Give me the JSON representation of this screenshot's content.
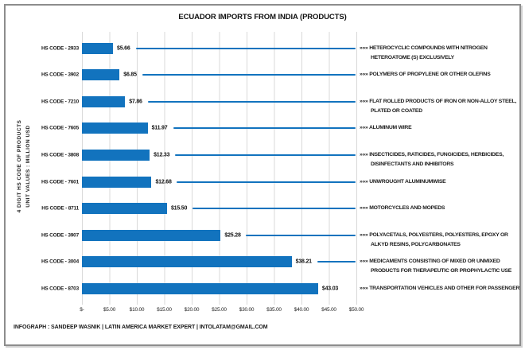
{
  "header": {
    "title": "ECUADOR IMPORTS FROM INDIA (PRODUCTS)"
  },
  "y_axis": {
    "line1": "4 DIGIT HS CODE OF PRODUCTS",
    "line2": "UNIT VALUES : MILLION USD"
  },
  "footer": {
    "text": "INFOGRAPH : SANDEEP WASNIK | LATIN AMERICA MARKET EXPERT | INTOLATAM@GMAIL.COM"
  },
  "arrow_prefix": "»»»",
  "colors": {
    "bar": "#1273BE",
    "leader_line": "#1273BE",
    "grid_line": "#D9D9D9",
    "frame_border": "#8D8D8D",
    "text": "#1A1A1A",
    "background": "#FFFFFF"
  },
  "chart_data": {
    "type": "bar",
    "orientation": "horizontal",
    "title": "ECUADOR IMPORTS FROM INDIA (PRODUCTS)",
    "ylabel": "4 DIGIT HS CODE OF PRODUCTS",
    "units_label": "UNIT VALUES : MILLION USD",
    "xlim": [
      0,
      50
    ],
    "x_tick_labels": [
      "$-",
      "$5.00",
      "$10.00",
      "$15.00",
      "$20.00",
      "$25.00",
      "$30.00",
      "$35.00",
      "$40.00",
      "$45.00",
      "$50.00"
    ],
    "grid": true,
    "legend": false,
    "bar_color": "#1273BE",
    "categories": [
      "HS CODE - 2933",
      "HS CODE - 3902",
      "HS CODE - 7210",
      "HS CODE - 7605",
      "HS CODE - 3808",
      "HS CODE - 7601",
      "HS CODE - 8711",
      "HS CODE - 3907",
      "HS CODE - 3004",
      "HS CODE - 8703"
    ],
    "values": [
      5.66,
      6.85,
      7.86,
      11.97,
      12.33,
      12.68,
      15.5,
      25.28,
      38.21,
      43.03
    ],
    "value_labels": [
      "$5.66",
      "$6.85",
      "$7.86",
      "$11.97",
      "$12.33",
      "$12.68",
      "$15.50",
      "$25.28",
      "$38.21",
      "$43.03"
    ],
    "descriptions": [
      "HETEROCYCLIC COMPOUNDS WITH NITROGEN HETEROATOME (S) EXCLUSIVELY",
      "POLYMERS OF PROPYLENE OR OTHER OLEFINS",
      "FLAT ROLLED PRODUCTS OF IRON OR NON-ALLOY STEEL, PLATED OR COATED",
      "ALUMINUM WIRE",
      "INSECTICIDES, RATICIDES, FUNGICIDES, HERBICIDES, DISINFECTANTS AND INHIBITORS",
      "UNWROUGHT ALUMINUMWISE",
      "MOTORCYCLES AND MOPEDS",
      "POLYACETALS, POLYESTERS, POLYESTERS, EPOXY OR ALKYD RESINS, POLYCARBONATES",
      "MEDICAMENTS CONSISTING OF MIXED OR UNMIXED PRODUCTS FOR THERAPEUTIC OR PROPHYLACTIC USE",
      "TRANSPORTATION VEHICLES AND OTHER FOR PASSENGER"
    ],
    "leader_lines": [
      true,
      true,
      true,
      true,
      true,
      true,
      true,
      true,
      true,
      false
    ]
  }
}
